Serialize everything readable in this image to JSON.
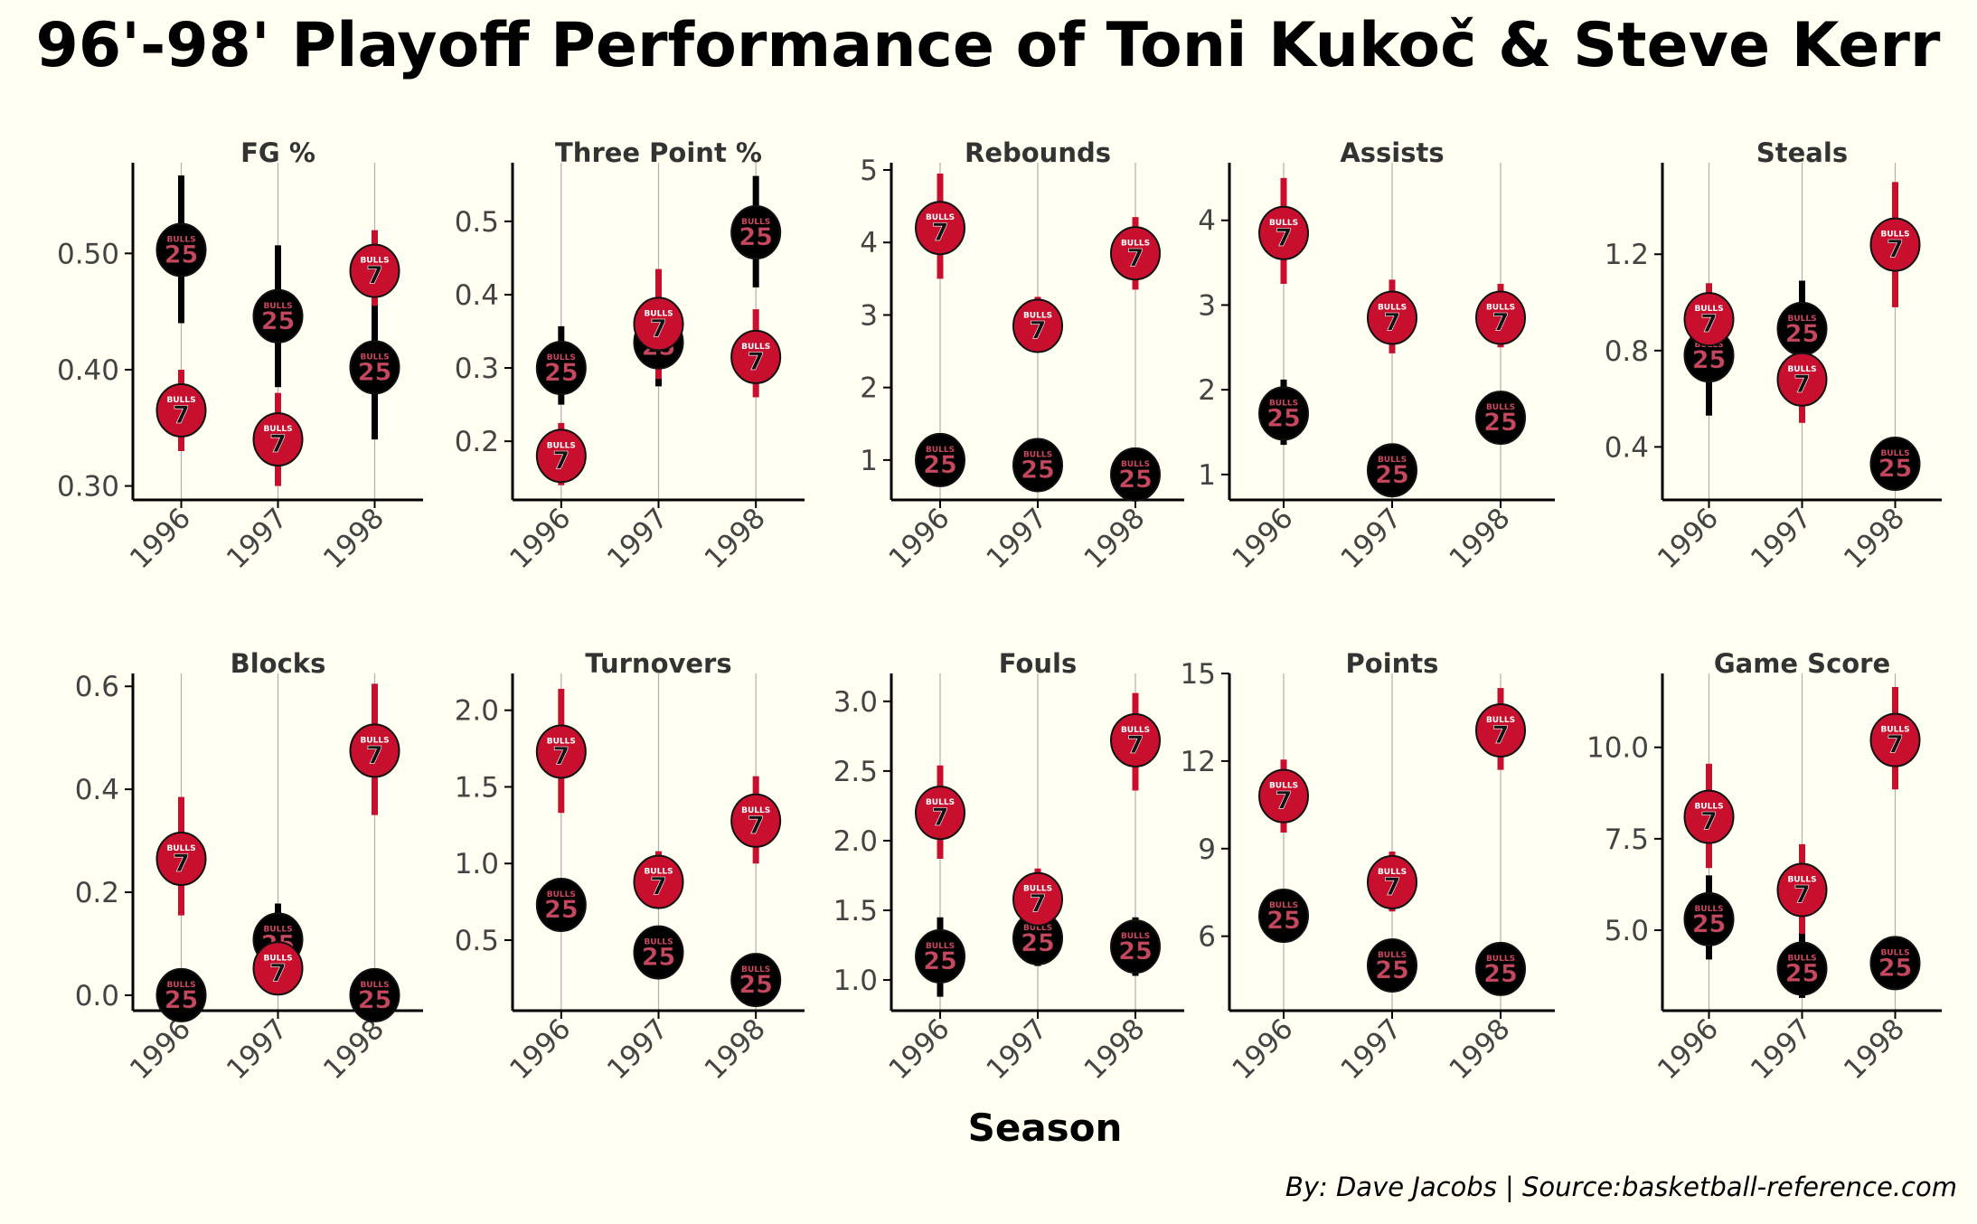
{
  "title": "96'-98' Playoff Performance of Toni Kukoč  & Steve Kerr",
  "x_label": "Season",
  "caption": "By: Dave Jacobs | Source:basketball-reference.com",
  "colors": {
    "background": "#fffff2",
    "kukoc": "#c8102e",
    "kerr": "#000000",
    "jersey_text": "#c8475e",
    "gridline": "#b0b0b0"
  },
  "markers": {
    "kukoc_number": "7",
    "kerr_number": "25",
    "jersey_wordmark": "BULLS"
  },
  "chart_data": [
    {
      "type": "scatter",
      "title": "FG %",
      "categories": [
        "1996",
        "1997",
        "1998"
      ],
      "yticks": [
        0.3,
        0.4,
        0.5
      ],
      "ylim": [
        0.288,
        0.578
      ],
      "series": [
        {
          "values": [
            0.365,
            0.34,
            0.485
          ],
          "err_low": [
            0.33,
            0.3,
            0.455
          ],
          "err_high": [
            0.4,
            0.38,
            0.52
          ]
        },
        {
          "values": [
            0.503,
            0.446,
            0.402
          ],
          "err_low": [
            0.44,
            0.385,
            0.34
          ],
          "err_high": [
            0.567,
            0.507,
            0.463
          ]
        }
      ]
    },
    {
      "type": "scatter",
      "title": "Three Point %",
      "categories": [
        "1996",
        "1997",
        "1998"
      ],
      "yticks": [
        0.2,
        0.3,
        0.4,
        0.5
      ],
      "ylim": [
        0.12,
        0.58
      ],
      "series": [
        {
          "values": [
            0.18,
            0.36,
            0.315
          ],
          "err_low": [
            0.14,
            0.285,
            0.26
          ],
          "err_high": [
            0.225,
            0.435,
            0.38
          ]
        },
        {
          "values": [
            0.3,
            0.335,
            0.485
          ],
          "err_low": [
            0.25,
            0.275,
            0.41
          ],
          "err_high": [
            0.357,
            0.37,
            0.562
          ]
        }
      ]
    },
    {
      "type": "scatter",
      "title": "Rebounds",
      "categories": [
        "1996",
        "1997",
        "1998"
      ],
      "yticks": [
        1,
        2,
        3,
        4,
        5
      ],
      "ylim": [
        0.45,
        5.1
      ],
      "series": [
        {
          "values": [
            4.2,
            2.85,
            3.85
          ],
          "err_low": [
            3.5,
            2.5,
            3.35
          ],
          "err_high": [
            4.95,
            3.25,
            4.35
          ]
        },
        {
          "values": [
            1.0,
            0.93,
            0.8
          ],
          "err_low": [
            0.83,
            0.78,
            0.62
          ],
          "err_high": [
            1.15,
            1.07,
            0.95
          ]
        }
      ]
    },
    {
      "type": "scatter",
      "title": "Assists",
      "categories": [
        "1996",
        "1997",
        "1998"
      ],
      "yticks": [
        1,
        2,
        3,
        4
      ],
      "ylim": [
        0.7,
        4.68
      ],
      "series": [
        {
          "values": [
            3.85,
            2.85,
            2.85
          ],
          "err_low": [
            3.25,
            2.43,
            2.5
          ],
          "err_high": [
            4.5,
            3.3,
            3.25
          ]
        },
        {
          "values": [
            1.72,
            1.05,
            1.67
          ],
          "err_low": [
            1.35,
            0.93,
            1.4
          ],
          "err_high": [
            2.12,
            1.2,
            1.98
          ]
        }
      ]
    },
    {
      "type": "scatter",
      "title": "Steals",
      "categories": [
        "1996",
        "1997",
        "1998"
      ],
      "yticks": [
        0.4,
        0.8,
        1.2
      ],
      "ylim": [
        0.18,
        1.58
      ],
      "series": [
        {
          "values": [
            0.93,
            0.68,
            1.24
          ],
          "err_low": [
            0.79,
            0.5,
            0.98
          ],
          "err_high": [
            1.08,
            0.86,
            1.5
          ]
        },
        {
          "values": [
            0.78,
            0.89,
            0.33
          ],
          "err_low": [
            0.53,
            0.72,
            0.23
          ],
          "err_high": [
            1.04,
            1.09,
            0.44
          ]
        }
      ]
    },
    {
      "type": "scatter",
      "title": "Blocks",
      "categories": [
        "1996",
        "1997",
        "1998"
      ],
      "yticks": [
        0.0,
        0.2,
        0.4,
        0.6
      ],
      "ylim": [
        -0.03,
        0.625
      ],
      "series": [
        {
          "values": [
            0.265,
            0.052,
            0.475
          ],
          "err_low": [
            0.155,
            0.03,
            0.35
          ],
          "err_high": [
            0.385,
            0.075,
            0.605
          ]
        },
        {
          "values": [
            0.0,
            0.108,
            0.0
          ],
          "err_low": [
            -0.01,
            0.04,
            -0.01
          ],
          "err_high": [
            0.01,
            0.178,
            0.01
          ]
        }
      ]
    },
    {
      "type": "scatter",
      "title": "Turnovers",
      "categories": [
        "1996",
        "1997",
        "1998"
      ],
      "yticks": [
        0.5,
        1.0,
        1.5,
        2.0
      ],
      "ylim": [
        0.04,
        2.24
      ],
      "series": [
        {
          "values": [
            1.73,
            0.88,
            1.28
          ],
          "err_low": [
            1.33,
            0.72,
            1.0
          ],
          "err_high": [
            2.14,
            1.08,
            1.57
          ]
        },
        {
          "values": [
            0.73,
            0.42,
            0.24
          ],
          "err_low": [
            0.62,
            0.33,
            0.15
          ],
          "err_high": [
            0.85,
            0.5,
            0.32
          ]
        }
      ]
    },
    {
      "type": "scatter",
      "title": "Fouls",
      "categories": [
        "1996",
        "1997",
        "1998"
      ],
      "yticks": [
        1.0,
        1.5,
        2.0,
        2.5,
        3.0
      ],
      "ylim": [
        0.78,
        3.2
      ],
      "series": [
        {
          "values": [
            2.2,
            1.58,
            2.72
          ],
          "err_low": [
            1.87,
            1.38,
            2.36
          ],
          "err_high": [
            2.54,
            1.8,
            3.06
          ]
        },
        {
          "values": [
            1.17,
            1.3,
            1.24
          ],
          "err_low": [
            0.88,
            1.1,
            1.03
          ],
          "err_high": [
            1.45,
            1.52,
            1.45
          ]
        }
      ]
    },
    {
      "type": "scatter",
      "title": "Points",
      "categories": [
        "1996",
        "1997",
        "1998"
      ],
      "yticks": [
        6,
        9,
        12,
        15
      ],
      "ylim": [
        3.45,
        15.0
      ],
      "series": [
        {
          "values": [
            10.8,
            7.85,
            13.05
          ],
          "err_low": [
            9.55,
            6.85,
            11.7
          ],
          "err_high": [
            12.05,
            8.9,
            14.5
          ]
        },
        {
          "values": [
            6.7,
            5.0,
            4.88
          ],
          "err_low": [
            6.0,
            4.25,
            4.3
          ],
          "err_high": [
            7.25,
            5.7,
            5.45
          ]
        }
      ]
    },
    {
      "type": "scatter",
      "title": "Game Score",
      "categories": [
        "1996",
        "1997",
        "1998"
      ],
      "yticks": [
        5.0,
        7.5,
        10.0
      ],
      "ylim": [
        2.8,
        12.02
      ],
      "series": [
        {
          "values": [
            8.1,
            6.1,
            10.2
          ],
          "err_low": [
            6.7,
            4.9,
            8.85
          ],
          "err_high": [
            9.55,
            7.35,
            11.65
          ]
        },
        {
          "values": [
            5.3,
            3.95,
            4.1
          ],
          "err_low": [
            4.2,
            3.15,
            3.5
          ],
          "err_high": [
            6.5,
            4.9,
            4.72
          ]
        }
      ]
    }
  ]
}
